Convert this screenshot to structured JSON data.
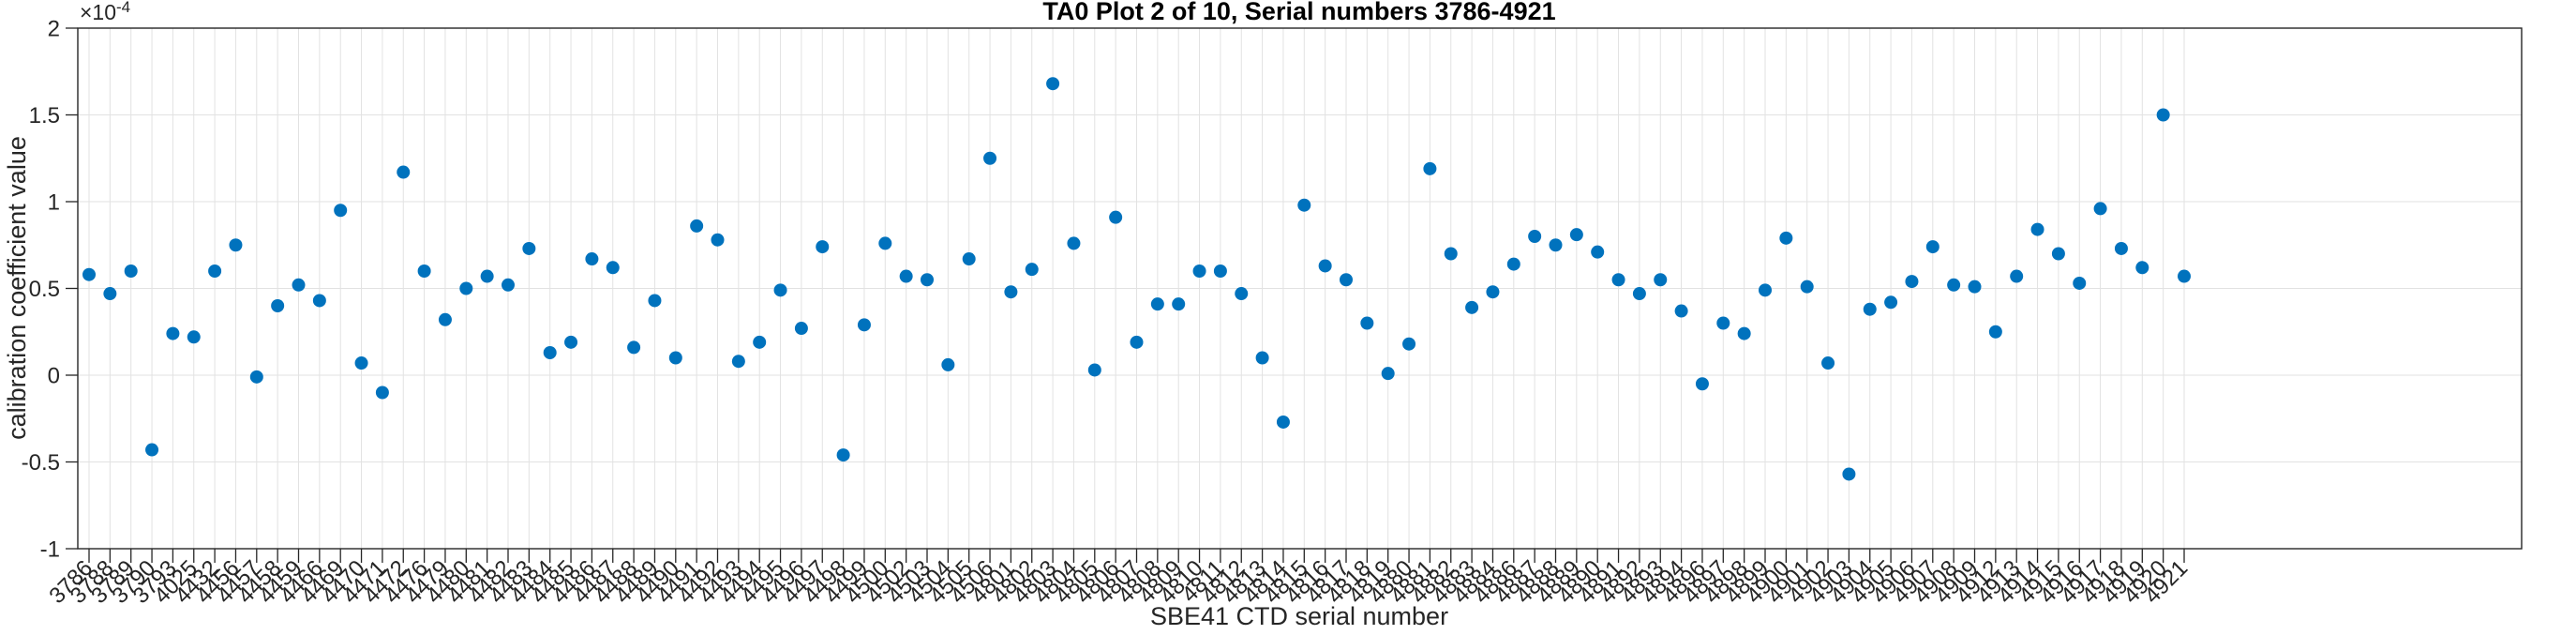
{
  "figure": {
    "title": "TA0 Plot 2 of 10, Serial numbers 3786-4921",
    "xlabel": "SBE41 CTD serial number",
    "ylabel": "calibration coefficient value",
    "y_multiplier_base": "×10",
    "y_multiplier_exp": "-4"
  },
  "colors": {
    "marker": "#0072BD",
    "grid": "#E2E2E2",
    "axis": "#262626",
    "title_text": "#000000"
  },
  "chart_data": {
    "type": "scatter",
    "title": "TA0 Plot 2 of 10, Serial numbers 3786-4921",
    "xlabel": "SBE41 CTD serial number",
    "ylabel": "calibration coefficient value",
    "y_units_multiplier": "1e-4",
    "ylim": [
      -1,
      2
    ],
    "yticks": [
      -1,
      -0.5,
      0,
      0.5,
      1,
      1.5,
      2
    ],
    "ytick_labels": [
      "-1",
      "-0.5",
      "0",
      "0.5",
      "1",
      "1.5",
      "2"
    ],
    "grid": true,
    "legend": "none",
    "marker": "filled-circle",
    "categories": [
      "3786",
      "3788",
      "3789",
      "3790",
      "3793",
      "4025",
      "4432",
      "4456",
      "4457",
      "4458",
      "4459",
      "4466",
      "4469",
      "4470",
      "4471",
      "4472",
      "4476",
      "4479",
      "4480",
      "4481",
      "4482",
      "4483",
      "4484",
      "4485",
      "4486",
      "4487",
      "4488",
      "4489",
      "4490",
      "4491",
      "4492",
      "4493",
      "4494",
      "4495",
      "4496",
      "4497",
      "4498",
      "4499",
      "4500",
      "4502",
      "4503",
      "4504",
      "4505",
      "4506",
      "4801",
      "4802",
      "4803",
      "4804",
      "4805",
      "4806",
      "4807",
      "4808",
      "4809",
      "4810",
      "4811",
      "4812",
      "4813",
      "4814",
      "4815",
      "4816",
      "4817",
      "4818",
      "4819",
      "4880",
      "4881",
      "4882",
      "4883",
      "4884",
      "4886",
      "4887",
      "4888",
      "4889",
      "4890",
      "4891",
      "4892",
      "4893",
      "4894",
      "4896",
      "4897",
      "4898",
      "4899",
      "4900",
      "4901",
      "4902",
      "4903",
      "4904",
      "4905",
      "4906",
      "4907",
      "4908",
      "4909",
      "4912",
      "4913",
      "4914",
      "4915",
      "4916",
      "4917",
      "4918",
      "4919",
      "4920",
      "4921"
    ],
    "values": [
      0.58,
      0.47,
      0.6,
      -0.43,
      0.24,
      0.22,
      0.6,
      0.75,
      -0.01,
      0.4,
      0.52,
      0.43,
      0.95,
      0.07,
      -0.1,
      1.17,
      0.6,
      0.32,
      0.5,
      0.57,
      0.52,
      0.73,
      0.13,
      0.19,
      0.67,
      0.62,
      0.16,
      0.43,
      0.1,
      0.86,
      0.78,
      0.08,
      0.19,
      0.49,
      0.27,
      0.74,
      -0.46,
      0.29,
      0.76,
      0.57,
      0.55,
      0.06,
      0.67,
      1.25,
      0.48,
      0.61,
      1.68,
      0.76,
      0.03,
      0.91,
      0.19,
      0.41,
      0.41,
      0.6,
      0.6,
      0.47,
      0.1,
      -0.27,
      0.98,
      0.63,
      0.55,
      0.3,
      0.01,
      0.18,
      1.19,
      0.7,
      0.39,
      0.48,
      0.64,
      0.8,
      0.75,
      0.81,
      0.71,
      0.55,
      0.47,
      0.55,
      0.37,
      -0.05,
      0.3,
      0.24,
      0.49,
      0.79,
      0.51,
      0.07,
      -0.57,
      0.38,
      0.42,
      0.54,
      0.74,
      0.52,
      0.51,
      0.25,
      0.57,
      0.84,
      0.7,
      0.53,
      0.96,
      0.73,
      0.62,
      1.5,
      0.57
    ]
  }
}
